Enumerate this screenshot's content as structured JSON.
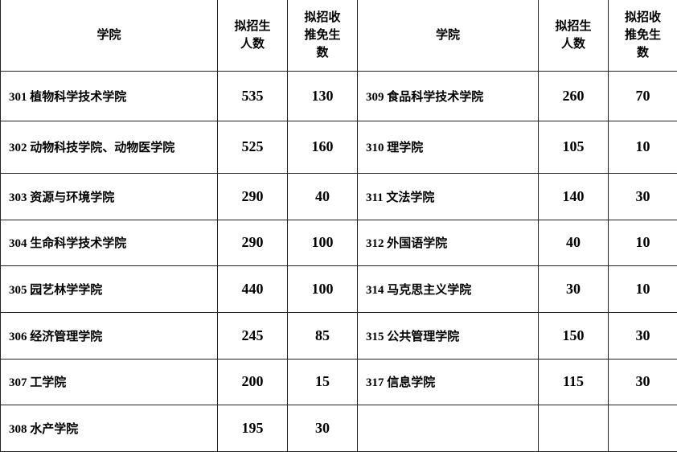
{
  "headers": {
    "college": "学院",
    "planned": [
      "拟招生",
      "人数"
    ],
    "exempt": [
      "拟招收",
      "推免生",
      "数"
    ]
  },
  "rows": [
    {
      "left": {
        "name": "301 植物科学技术学院",
        "planned": "535",
        "exempt": "130"
      },
      "right": {
        "name": "309 食品科学技术学院",
        "planned": "260",
        "exempt": "70"
      }
    },
    {
      "left": {
        "name": "302 动物科技学院、动物医学院",
        "planned": "525",
        "exempt": "160"
      },
      "right": {
        "name": "310 理学院",
        "planned": "105",
        "exempt": "10"
      }
    },
    {
      "left": {
        "name": "303 资源与环境学院",
        "planned": "290",
        "exempt": "40"
      },
      "right": {
        "name": "311 文法学院",
        "planned": "140",
        "exempt": "30"
      }
    },
    {
      "left": {
        "name": "304 生命科学技术学院",
        "planned": "290",
        "exempt": "100"
      },
      "right": {
        "name": "312 外国语学院",
        "planned": "40",
        "exempt": "10"
      }
    },
    {
      "left": {
        "name": "305 园艺林学学院",
        "planned": "440",
        "exempt": "100"
      },
      "right": {
        "name": "314 马克思主义学院",
        "planned": "30",
        "exempt": "10"
      }
    },
    {
      "left": {
        "name": "306 经济管理学院",
        "planned": "245",
        "exempt": "85"
      },
      "right": {
        "name": "315 公共管理学院",
        "planned": "150",
        "exempt": "30"
      }
    },
    {
      "left": {
        "name": "307 工学院",
        "planned": "200",
        "exempt": "15"
      },
      "right": {
        "name": "317 信息学院",
        "planned": "115",
        "exempt": "30"
      }
    },
    {
      "left": {
        "name": "308 水产学院",
        "planned": "195",
        "exempt": "30"
      },
      "right": {
        "name": "",
        "planned": "",
        "exempt": ""
      }
    }
  ]
}
